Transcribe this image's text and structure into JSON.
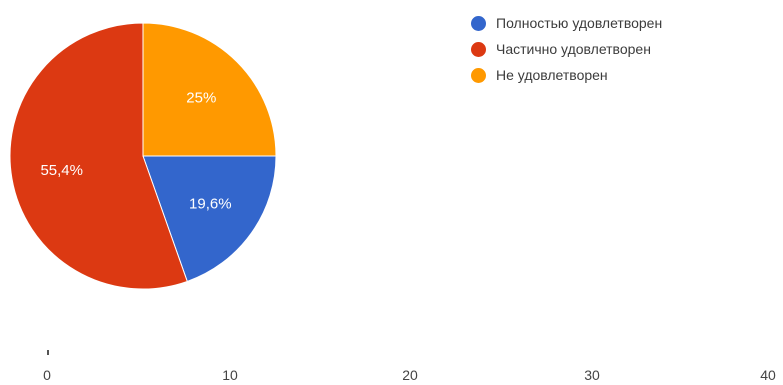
{
  "chart_data": {
    "type": "pie",
    "title": "",
    "slices": [
      {
        "label": "Полностью удовлетворен",
        "value": 19.6,
        "display": "19,6%",
        "color": "#3366cc"
      },
      {
        "label": "Частично удовлетворен",
        "value": 55.4,
        "display": "55,4%",
        "color": "#dc3912"
      },
      {
        "label": "Не удовлетворен",
        "value": 25,
        "display": "25%",
        "color": "#ff9900"
      }
    ],
    "legend_position": "right",
    "x_axis": {
      "ticks": [
        "0",
        "10",
        "20",
        "30",
        "40"
      ],
      "range": [
        0,
        40
      ]
    }
  }
}
